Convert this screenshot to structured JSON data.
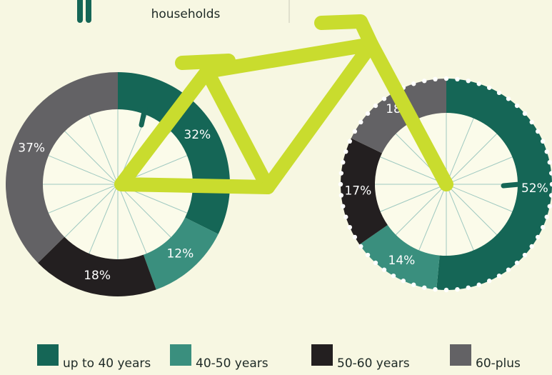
{
  "header": {
    "text": "households"
  },
  "chart_data": [
    {
      "type": "donut",
      "categories": [
        "up to 40 years",
        "40-50 years",
        "50-60 years",
        "60-plus"
      ],
      "values": [
        32,
        12,
        18,
        37
      ],
      "value_labels": [
        "32%",
        "12%",
        "18%",
        "37%"
      ],
      "colors": [
        "#156656",
        "#3a8f7e",
        "#231f20",
        "#636265"
      ]
    },
    {
      "type": "donut",
      "categories": [
        "up to 40 years",
        "40-50 years",
        "50-60 years",
        "60-plus"
      ],
      "values": [
        52,
        14,
        17,
        18
      ],
      "value_labels": [
        "52%",
        "14%",
        "17%",
        "18%"
      ],
      "colors": [
        "#156656",
        "#3a8f7e",
        "#231f20",
        "#636265"
      ]
    }
  ]
}
